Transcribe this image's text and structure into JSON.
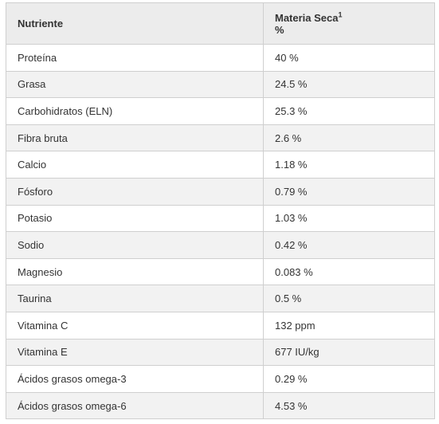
{
  "header": {
    "col1": "Nutriente",
    "col2_line1": "Materia Seca",
    "col2_sup": "1",
    "col2_line2": "%"
  },
  "rows": [
    {
      "nutrient": "Proteína",
      "value": "40 %"
    },
    {
      "nutrient": "Grasa",
      "value": "24.5 %"
    },
    {
      "nutrient": "Carbohidratos (ELN)",
      "value": "25.3 %"
    },
    {
      "nutrient": "Fibra bruta",
      "value": "2.6 %"
    },
    {
      "nutrient": "Calcio",
      "value": "1.18 %"
    },
    {
      "nutrient": "Fósforo",
      "value": "0.79 %"
    },
    {
      "nutrient": "Potasio",
      "value": "1.03 %"
    },
    {
      "nutrient": "Sodio",
      "value": "0.42 %"
    },
    {
      "nutrient": "Magnesio",
      "value": "0.083 %"
    },
    {
      "nutrient": "Taurina",
      "value": "0.5 %"
    },
    {
      "nutrient": "Vitamina C",
      "value": "132 ppm"
    },
    {
      "nutrient": "Vitamina E",
      "value": "677 IU/kg"
    },
    {
      "nutrient": "Ácidos grasos omega-3",
      "value": "0.29 %"
    },
    {
      "nutrient": "Ácidos grasos omega-6",
      "value": "4.53 %"
    }
  ]
}
